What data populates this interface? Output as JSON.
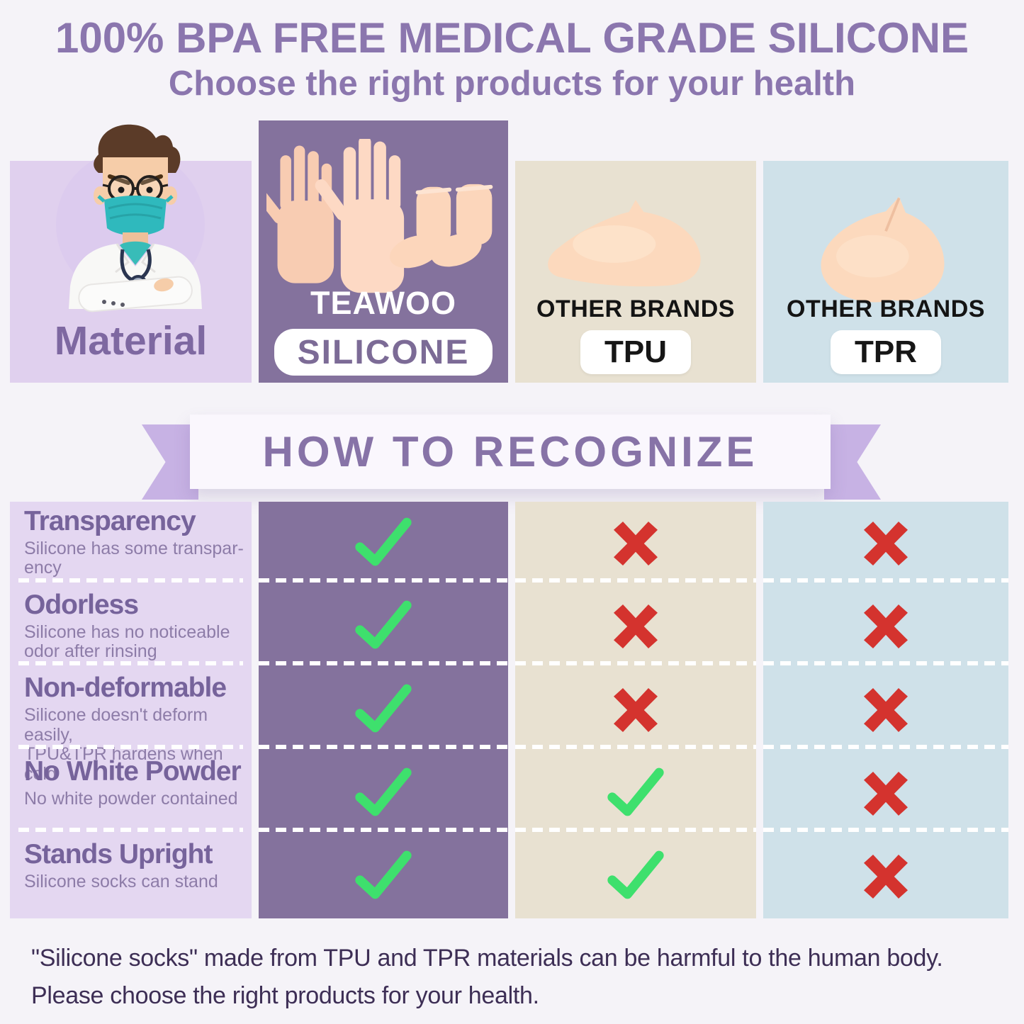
{
  "header": {
    "title": "100% BPA FREE MEDICAL GRADE SILICONE",
    "subtitle": "Choose the right products for your health"
  },
  "materials_header": {
    "row_label": "Material",
    "doctor_image": "cartoon-doctor-with-face-mask",
    "columns": [
      {
        "id": "teawoo",
        "brand": "TEAWOO",
        "material": "SILICONE",
        "image": "silicone-gloves-and-socks"
      },
      {
        "id": "tpu",
        "brand": "OTHER BRANDS",
        "material": "TPU",
        "image": "tpu-shoe-cover"
      },
      {
        "id": "tpr",
        "brand": "OTHER BRANDS",
        "material": "TPR",
        "image": "tpr-foot-sleeve"
      }
    ]
  },
  "banner": {
    "title": "HOW TO RECOGNIZE"
  },
  "comparison": {
    "rows": [
      {
        "feature": "Transparency",
        "description": "Silicone has some transpar-\nency",
        "marks": {
          "teawoo": "check",
          "tpu": "cross",
          "tpr": "cross"
        }
      },
      {
        "feature": "Odorless",
        "description": "Silicone has no noticeable\nodor after rinsing",
        "marks": {
          "teawoo": "check",
          "tpu": "cross",
          "tpr": "cross"
        }
      },
      {
        "feature": "Non-deformable",
        "description": "Silicone doesn't deform easily,\nTPU&TPR hardens when cold",
        "marks": {
          "teawoo": "check",
          "tpu": "cross",
          "tpr": "cross"
        }
      },
      {
        "feature": "No White Powder",
        "description": "No white powder contained",
        "marks": {
          "teawoo": "check",
          "tpu": "check",
          "tpr": "cross"
        }
      },
      {
        "feature": "Stands Upright",
        "description": "Silicone socks can stand",
        "marks": {
          "teawoo": "check",
          "tpu": "check",
          "tpr": "cross"
        }
      }
    ]
  },
  "footer": {
    "text": "\"Silicone socks\" made from TPU and TPR materials can be harmful to the human body.\nPlease choose the right products for your health."
  },
  "colors": {
    "accent_purple": "#8b76ae",
    "label_column": "#e4d7f1",
    "teawoo_column": "#84729d",
    "tpu_column": "#e8e1d1",
    "tpr_column": "#cfe1e9",
    "ribbon": "#c7b2e4",
    "check_green": "#3ee06d",
    "cross_red": "#d4332e",
    "product_peach": "#fcd9bd",
    "footer_text": "#3d2e55"
  }
}
